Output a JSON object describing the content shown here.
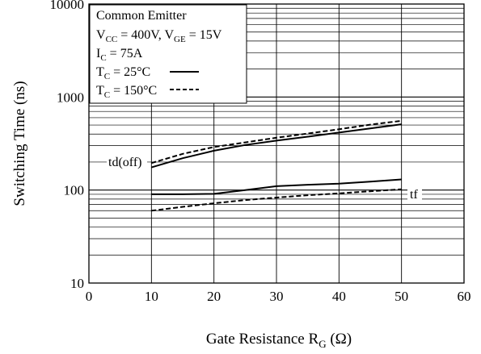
{
  "chart_data": {
    "type": "line",
    "title": "",
    "xlabel": "Gate Resistance",
    "xlabel_symbol": "R",
    "xlabel_symbol_sub": "G",
    "xlabel_unit": "(Ω)",
    "ylabel": "Switching Time  (ns)",
    "xlim": [
      0,
      60
    ],
    "ylim": [
      10,
      10000
    ],
    "yscale": "log",
    "grid": true,
    "x_ticks": [
      "0",
      "10",
      "20",
      "30",
      "40",
      "50",
      "60"
    ],
    "y_ticks": [
      "10",
      "100",
      "1000",
      "10000"
    ],
    "legend_position": "top-left",
    "conditions": {
      "line1": "Common Emitter",
      "line2_vcc_sym": "V",
      "line2_vcc_sub": "CC",
      "line2_vcc_val": " = 400V, ",
      "line2_vge_sym": "V",
      "line2_vge_sub": "GE",
      "line2_vge_val": " = 15V",
      "line3_ic_sym": "I",
      "line3_ic_sub": "C",
      "line3_ic_val": " = 75A",
      "tc_sym": "T",
      "tc_sub": "C",
      "tc25_val": " = 25°C",
      "tc150_val": " = 150°C"
    },
    "series": [
      {
        "name": "td(off) T_C=25°C",
        "label": "td(off)",
        "style": "solid",
        "x": [
          10,
          15,
          20,
          25,
          30,
          35,
          40,
          45,
          50
        ],
        "y": [
          175,
          220,
          265,
          305,
          340,
          375,
          415,
          460,
          510
        ]
      },
      {
        "name": "td(off) T_C=150°C",
        "label": "",
        "style": "dashed",
        "x": [
          10,
          15,
          20,
          25,
          30,
          35,
          40,
          45,
          50
        ],
        "y": [
          195,
          245,
          290,
          325,
          365,
          405,
          450,
          505,
          555
        ]
      },
      {
        "name": "tf T_C=25°C",
        "label": "",
        "style": "solid",
        "x": [
          10,
          15,
          20,
          25,
          30,
          35,
          40,
          45,
          50
        ],
        "y": [
          90,
          90,
          91,
          100,
          110,
          114,
          117,
          123,
          130
        ]
      },
      {
        "name": "tf T_C=150°C",
        "label": "tf",
        "style": "dashed",
        "x": [
          10,
          15,
          20,
          25,
          30,
          35,
          40,
          45,
          50
        ],
        "y": [
          60,
          66,
          72,
          78,
          83,
          88,
          92,
          97,
          102
        ]
      }
    ]
  }
}
